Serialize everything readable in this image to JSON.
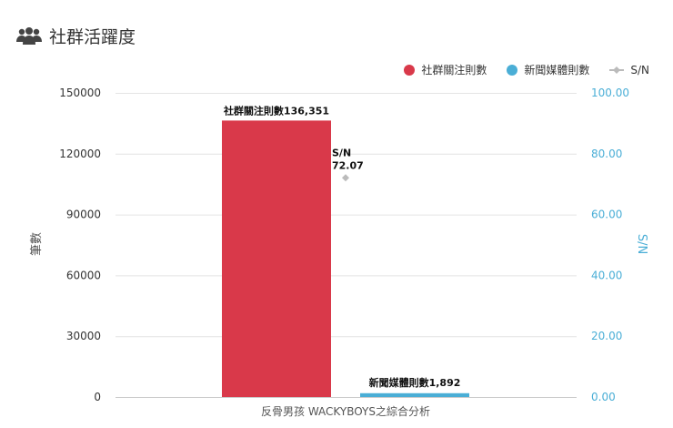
{
  "header": {
    "title": "社群活躍度",
    "icon": "users-icon"
  },
  "colors": {
    "social": "#d9394a",
    "news": "#4aaed6",
    "sn": "#bbbbbb"
  },
  "chart_data": {
    "type": "bar",
    "categories": [
      "反骨男孩 WACKYBOYS之綜合分析"
    ],
    "series": [
      {
        "name": "社群關注則數",
        "values": [
          136351
        ],
        "axis": "left",
        "label": "社群關注則數136,351"
      },
      {
        "name": "新聞媒體則數",
        "values": [
          1892
        ],
        "axis": "left",
        "label": "新聞媒體則數1,892"
      },
      {
        "name": "S/N",
        "values": [
          72.07
        ],
        "axis": "right",
        "label_name": "S/N",
        "label_value": "72.07"
      }
    ],
    "ylabel": "筆數",
    "y2label": "S/N",
    "ylim": [
      0,
      150000
    ],
    "y2lim": [
      0,
      100
    ],
    "yticks": [
      "0",
      "30000",
      "60000",
      "90000",
      "120000",
      "150000"
    ],
    "y2ticks": [
      "0.00",
      "20.00",
      "40.00",
      "60.00",
      "80.00",
      "100.00"
    ],
    "legend": "top-right",
    "grid": true
  }
}
